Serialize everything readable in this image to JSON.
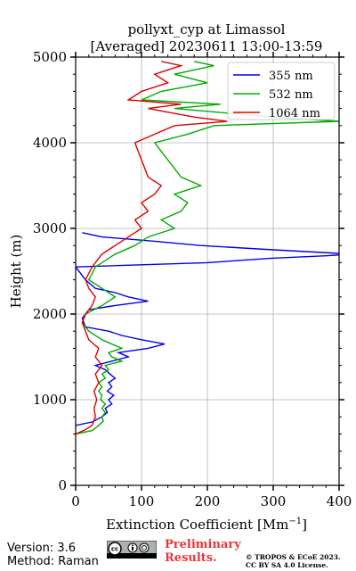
{
  "chart_data": {
    "type": "line",
    "title_line1": "pollyxt_cyp at Limassol",
    "title_line2": "[Averaged] 20230611 13:00-13:59",
    "xlabel": "Extinction Coefficient [Mm",
    "xlabel_sup": "−1",
    "xlabel_end": "]",
    "ylabel": "Height (m)",
    "xlim": [
      0,
      400
    ],
    "ylim": [
      0,
      5000
    ],
    "xticks": [
      "0",
      "100",
      "200",
      "300",
      "400"
    ],
    "xtick_values": [
      0,
      100,
      200,
      300,
      400
    ],
    "yticks": [
      "0",
      "1000",
      "2000",
      "3000",
      "4000",
      "5000"
    ],
    "ytick_values": [
      0,
      1000,
      2000,
      3000,
      4000,
      5000
    ],
    "grid": true,
    "legend_position": "top-right",
    "series": [
      {
        "name": "355 nm",
        "color": "#0000ee",
        "points": [
          [
            0,
            700
          ],
          [
            25,
            740
          ],
          [
            40,
            800
          ],
          [
            48,
            850
          ],
          [
            45,
            900
          ],
          [
            55,
            950
          ],
          [
            50,
            1000
          ],
          [
            58,
            1050
          ],
          [
            48,
            1100
          ],
          [
            55,
            1150
          ],
          [
            50,
            1200
          ],
          [
            60,
            1250
          ],
          [
            52,
            1300
          ],
          [
            45,
            1350
          ],
          [
            30,
            1400
          ],
          [
            55,
            1450
          ],
          [
            80,
            1500
          ],
          [
            65,
            1550
          ],
          [
            110,
            1600
          ],
          [
            135,
            1650
          ],
          [
            100,
            1700
          ],
          [
            70,
            1750
          ],
          [
            50,
            1800
          ],
          [
            15,
            1850
          ],
          [
            10,
            1950
          ],
          [
            20,
            2050
          ],
          [
            60,
            2100
          ],
          [
            110,
            2150
          ],
          [
            80,
            2200
          ],
          [
            60,
            2250
          ],
          [
            30,
            2300
          ],
          [
            15,
            2400
          ],
          [
            0,
            2550
          ],
          [
            200,
            2600
          ],
          [
            295,
            2650
          ],
          [
            380,
            2680
          ],
          [
            420,
            2700
          ],
          [
            300,
            2750
          ],
          [
            190,
            2800
          ],
          [
            120,
            2850
          ],
          [
            40,
            2900
          ],
          [
            10,
            2950
          ]
        ]
      },
      {
        "name": "532 nm",
        "color": "#00aa00",
        "points": [
          [
            0,
            600
          ],
          [
            25,
            640
          ],
          [
            35,
            700
          ],
          [
            42,
            750
          ],
          [
            40,
            800
          ],
          [
            45,
            850
          ],
          [
            40,
            900
          ],
          [
            45,
            950
          ],
          [
            38,
            1000
          ],
          [
            40,
            1050
          ],
          [
            35,
            1100
          ],
          [
            40,
            1150
          ],
          [
            35,
            1200
          ],
          [
            45,
            1250
          ],
          [
            40,
            1300
          ],
          [
            50,
            1350
          ],
          [
            45,
            1400
          ],
          [
            70,
            1450
          ],
          [
            55,
            1500
          ],
          [
            50,
            1550
          ],
          [
            70,
            1600
          ],
          [
            40,
            1700
          ],
          [
            20,
            1800
          ],
          [
            10,
            1900
          ],
          [
            15,
            2000
          ],
          [
            40,
            2100
          ],
          [
            60,
            2200
          ],
          [
            40,
            2300
          ],
          [
            20,
            2400
          ],
          [
            30,
            2550
          ],
          [
            60,
            2700
          ],
          [
            90,
            2800
          ],
          [
            110,
            2900
          ],
          [
            150,
            3000
          ],
          [
            130,
            3100
          ],
          [
            160,
            3200
          ],
          [
            170,
            3300
          ],
          [
            150,
            3400
          ],
          [
            190,
            3500
          ],
          [
            160,
            3600
          ],
          [
            120,
            4000
          ],
          [
            170,
            4100
          ],
          [
            210,
            4200
          ],
          [
            400,
            4250
          ],
          [
            300,
            4300
          ],
          [
            150,
            4400
          ],
          [
            220,
            4450
          ],
          [
            100,
            4500
          ],
          [
            130,
            4600
          ],
          [
            200,
            4700
          ],
          [
            150,
            4800
          ],
          [
            210,
            4900
          ],
          [
            180,
            4950
          ]
        ]
      },
      {
        "name": "1064 nm",
        "color": "#dd0000",
        "points": [
          [
            0,
            600
          ],
          [
            15,
            650
          ],
          [
            25,
            700
          ],
          [
            30,
            800
          ],
          [
            28,
            900
          ],
          [
            32,
            1000
          ],
          [
            28,
            1100
          ],
          [
            35,
            1200
          ],
          [
            30,
            1300
          ],
          [
            40,
            1400
          ],
          [
            30,
            1500
          ],
          [
            35,
            1600
          ],
          [
            20,
            1700
          ],
          [
            15,
            1800
          ],
          [
            10,
            1900
          ],
          [
            15,
            2000
          ],
          [
            25,
            2100
          ],
          [
            30,
            2200
          ],
          [
            20,
            2300
          ],
          [
            15,
            2400
          ],
          [
            25,
            2550
          ],
          [
            40,
            2700
          ],
          [
            60,
            2800
          ],
          [
            80,
            2900
          ],
          [
            100,
            3000
          ],
          [
            90,
            3100
          ],
          [
            110,
            3200
          ],
          [
            100,
            3300
          ],
          [
            120,
            3400
          ],
          [
            130,
            3500
          ],
          [
            110,
            3600
          ],
          [
            90,
            4000
          ],
          [
            120,
            4100
          ],
          [
            150,
            4200
          ],
          [
            230,
            4250
          ],
          [
            180,
            4300
          ],
          [
            110,
            4400
          ],
          [
            160,
            4450
          ],
          [
            80,
            4500
          ],
          [
            100,
            4600
          ],
          [
            140,
            4700
          ],
          [
            120,
            4800
          ],
          [
            160,
            4900
          ],
          [
            130,
            4950
          ]
        ]
      }
    ]
  },
  "footer": {
    "version": "Version: 3.6",
    "method": "Method: Raman",
    "preliminary_line1": "Preliminary",
    "preliminary_line2": "Results.",
    "copyright_line1": "© TROPOS & ECoE 2023.",
    "copyright_line2": "CC BY SA 4.0 License.",
    "license_icon": "cc-by-sa-icon"
  }
}
